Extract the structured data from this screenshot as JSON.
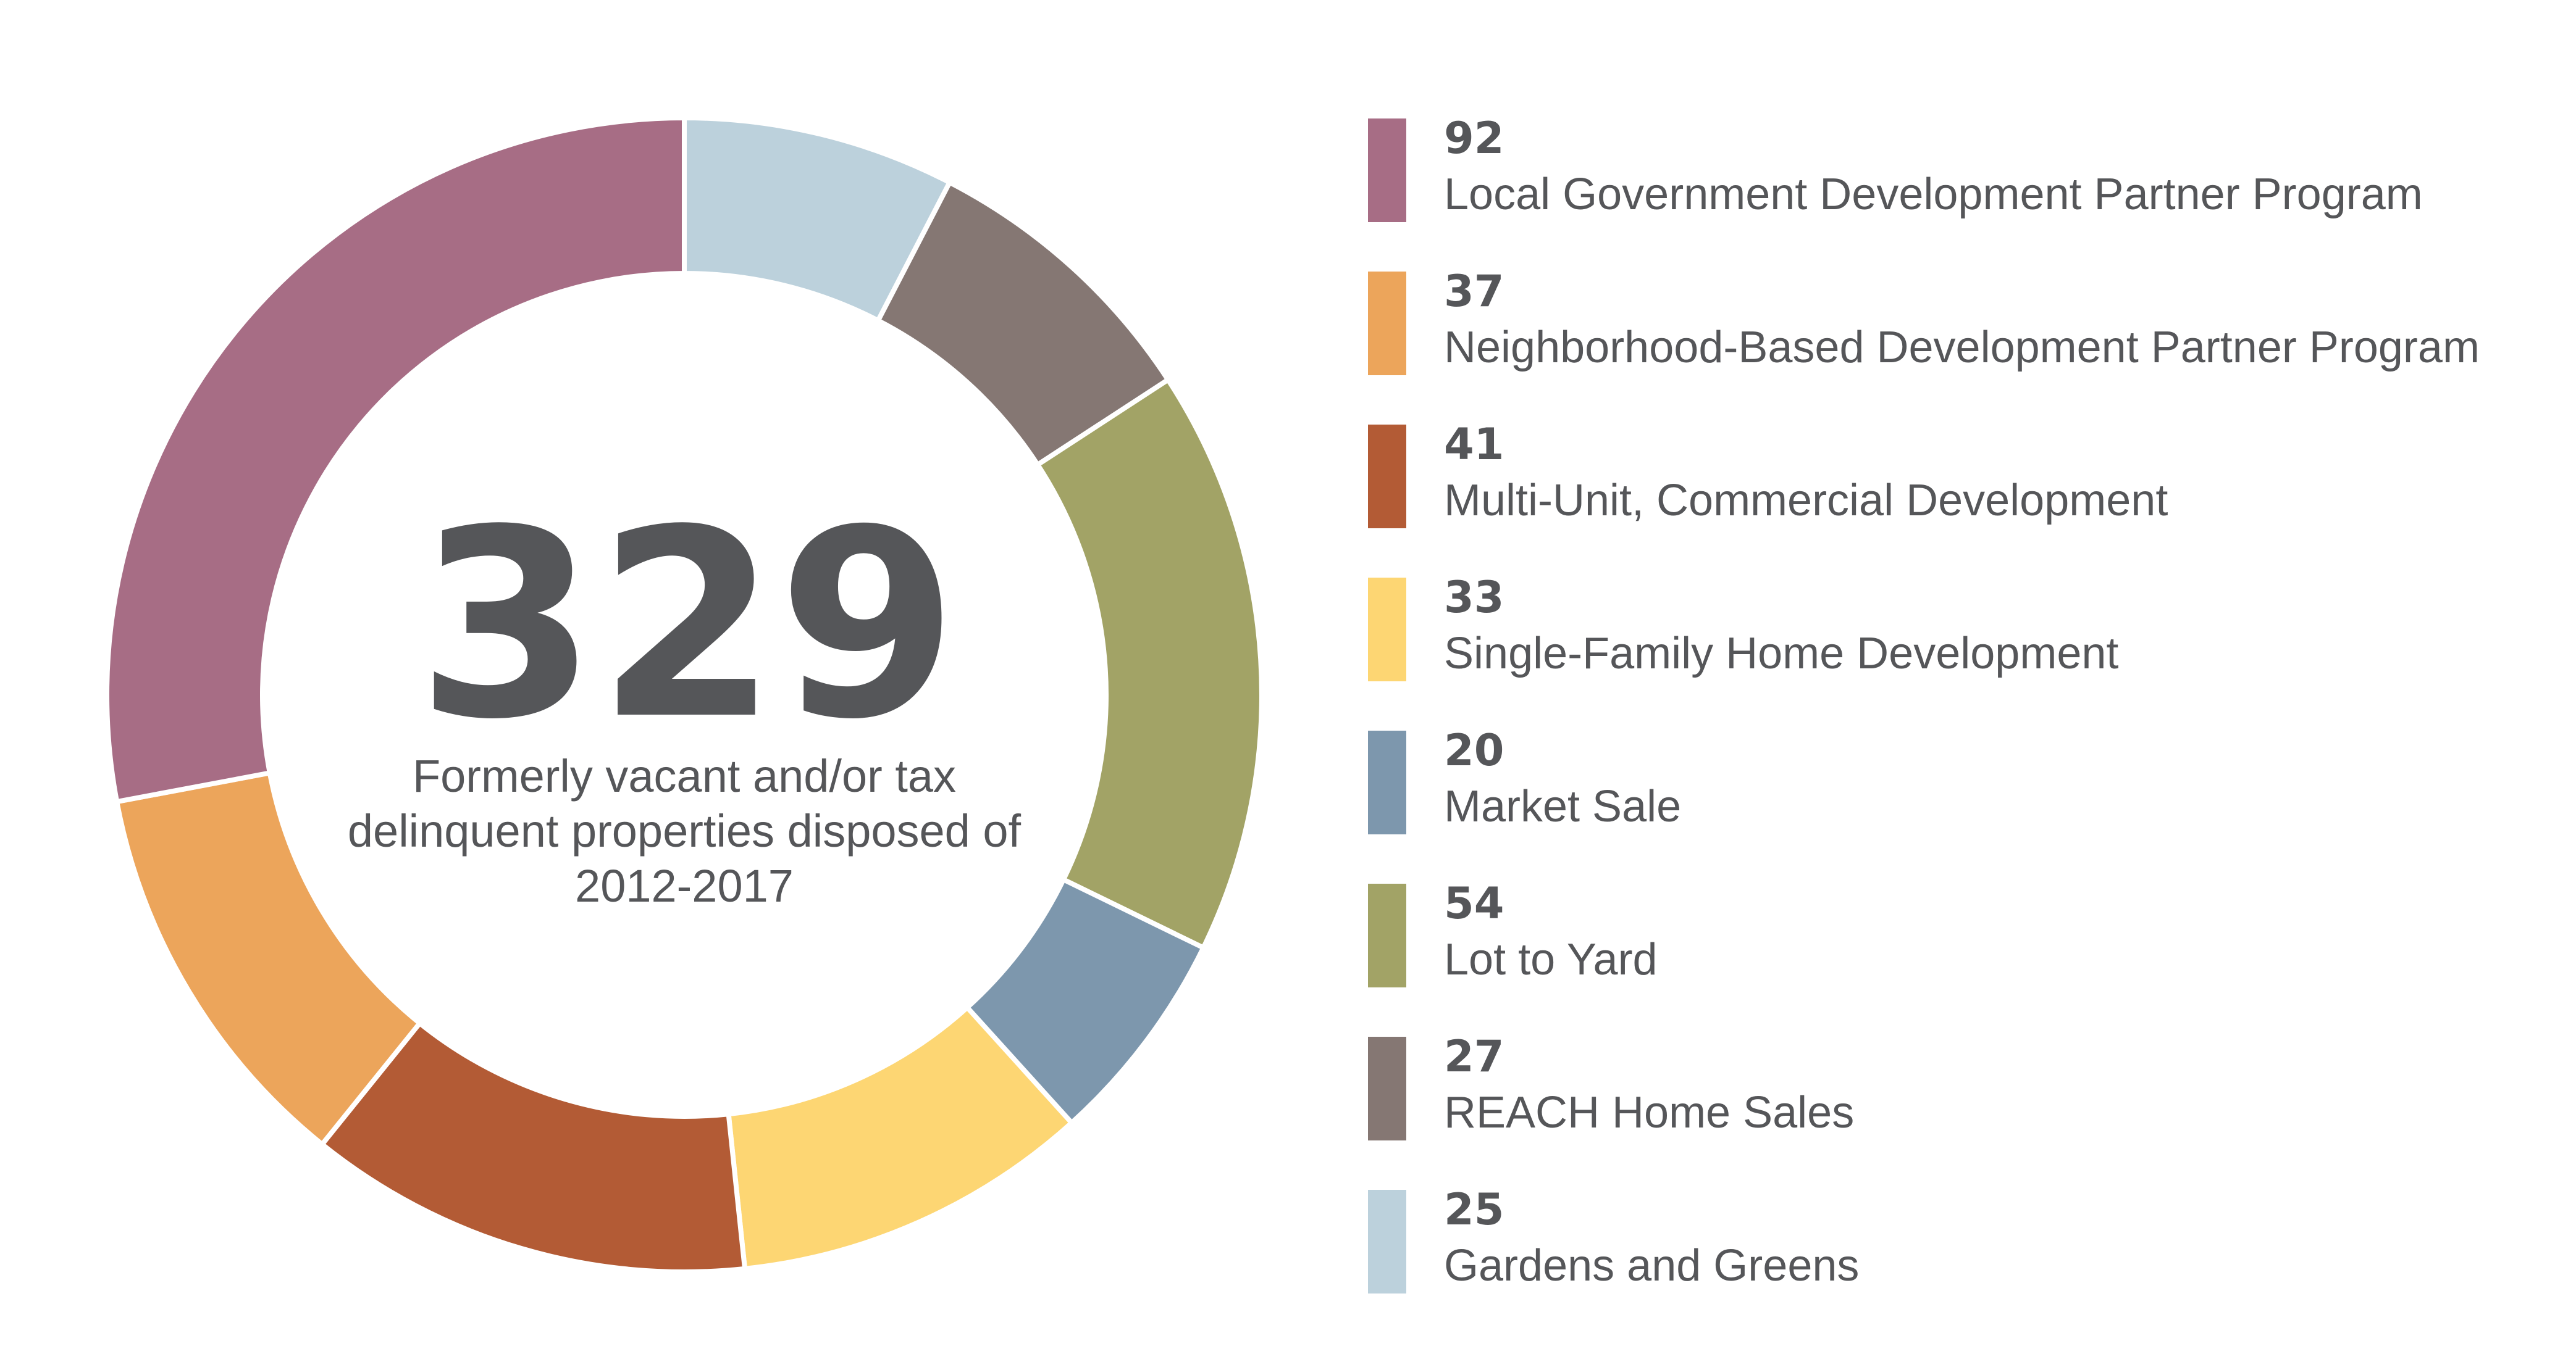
{
  "chart_data": {
    "type": "pie",
    "variant": "donut",
    "total": "329",
    "caption_lines": [
      "Formerly vacant and/or tax",
      "delinquent properties disposed of",
      "2012-2017"
    ],
    "categories": [
      "Gardens and Greens",
      "REACH Home Sales",
      "Lot to Yard",
      "Market Sale",
      "Single-Family Home Development",
      "Multi-Unit, Commercial Development",
      "Neighborhood-Based Development Partner Program",
      "Local Government Development Partner Program"
    ],
    "values": [
      25,
      27,
      54,
      20,
      33,
      41,
      37,
      92
    ],
    "colors": [
      "#bcd1dc",
      "#857773",
      "#a2a366",
      "#7d97ad",
      "#fdd673",
      "#b35b35",
      "#eca55b",
      "#a76d85"
    ],
    "legend_position": "right",
    "legend": [
      {
        "value": "92",
        "label": "Local Government Development Partner Program",
        "color": "#a76d85"
      },
      {
        "value": "37",
        "label": "Neighborhood-Based Development Partner Program",
        "color": "#eca55b"
      },
      {
        "value": "41",
        "label": "Multi-Unit, Commercial Development",
        "color": "#b35b35"
      },
      {
        "value": "33",
        "label": "Single-Family Home Development",
        "color": "#fdd673"
      },
      {
        "value": "20",
        "label": "Market Sale",
        "color": "#7d97ad"
      },
      {
        "value": "54",
        "label": "Lot to Yard",
        "color": "#a2a366"
      },
      {
        "value": "27",
        "label": "REACH Home Sales",
        "color": "#857773"
      },
      {
        "value": "25",
        "label": "Gardens and Greens",
        "color": "#bcd1dc"
      }
    ]
  }
}
